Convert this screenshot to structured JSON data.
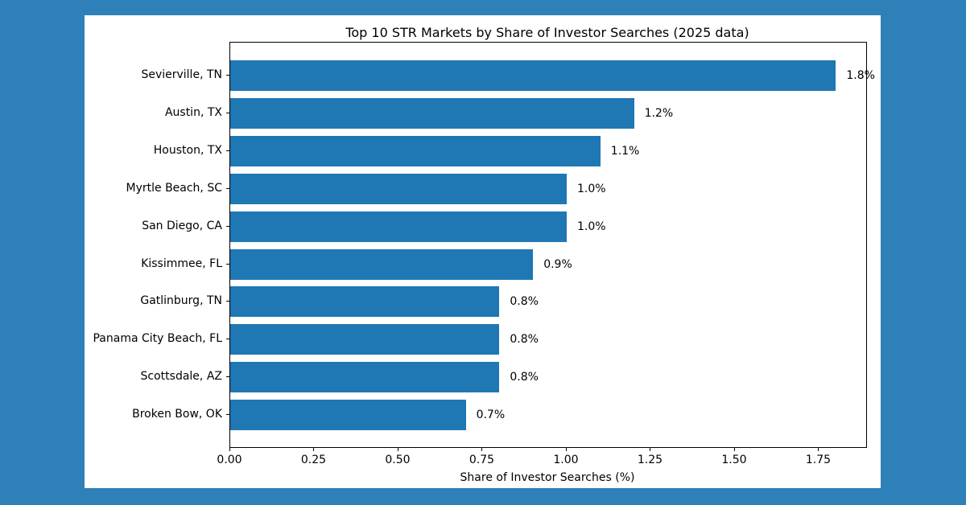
{
  "page": {
    "background_color": "#2e80b8"
  },
  "chart_data": {
    "type": "bar",
    "orientation": "horizontal",
    "title": "Top 10 STR Markets by Share of Investor Searches (2025 data)",
    "xlabel": "Share of Investor Searches (%)",
    "ylabel": "",
    "categories": [
      "Sevierville, TN",
      "Austin, TX",
      "Houston, TX",
      "Myrtle Beach, SC",
      "San Diego, CA",
      "Kissimmee, FL",
      "Gatlinburg, TN",
      "Panama City Beach, FL",
      "Scottsdale, AZ",
      "Broken Bow, OK"
    ],
    "values": [
      1.8,
      1.2,
      1.1,
      1.0,
      1.0,
      0.9,
      0.8,
      0.8,
      0.8,
      0.7
    ],
    "value_labels": [
      "1.8%",
      "1.2%",
      "1.1%",
      "1.0%",
      "1.0%",
      "0.9%",
      "0.8%",
      "0.8%",
      "0.8%",
      "0.7%"
    ],
    "xlim": [
      0,
      1.89
    ],
    "xticks": [
      0,
      0.25,
      0.5,
      0.75,
      1.0,
      1.25,
      1.5,
      1.75
    ],
    "xtick_labels": [
      "0.00",
      "0.25",
      "0.50",
      "0.75",
      "1.00",
      "1.25",
      "1.50",
      "1.75"
    ],
    "bar_color": "#1f77b4",
    "text_color": "#000000",
    "plot_background": "#ffffff",
    "grid": false,
    "legend": "none"
  }
}
